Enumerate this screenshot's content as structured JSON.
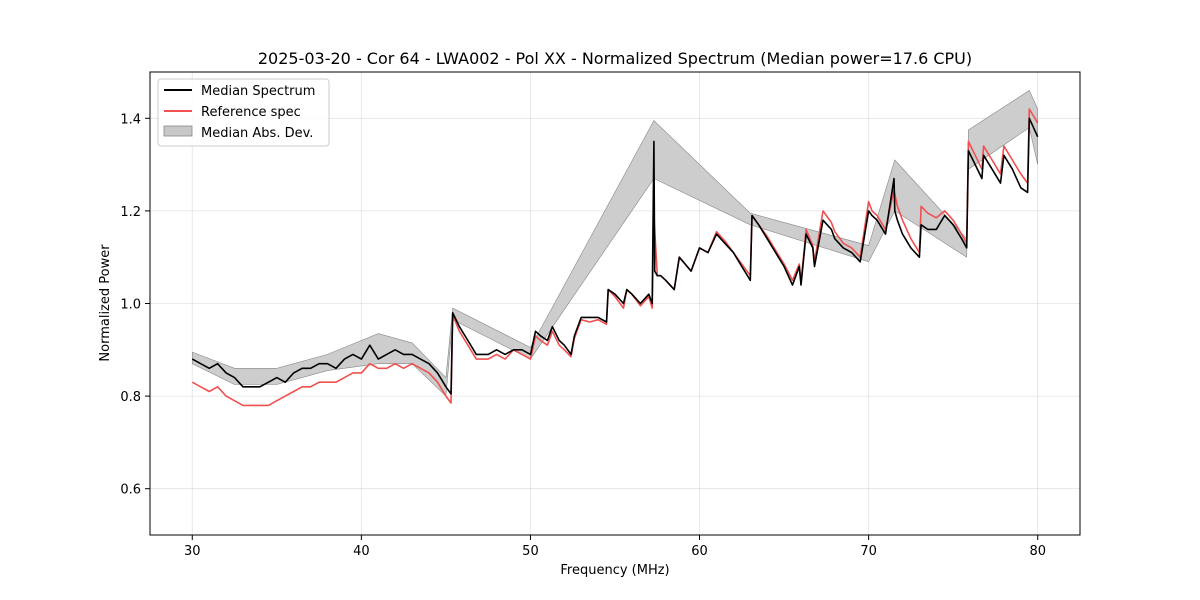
{
  "chart_data": {
    "type": "line",
    "title": "2025-03-20 - Cor 64 - LWA002 - Pol XX - Normalized Spectrum (Median power=17.6 CPU)",
    "xlabel": "Frequency (MHz)",
    "ylabel": "Normalized Power",
    "xlim": [
      27.5,
      82.5
    ],
    "ylim": [
      0.5,
      1.5
    ],
    "xticks": [
      30,
      40,
      50,
      60,
      70,
      80
    ],
    "yticks": [
      0.6,
      0.8,
      1.0,
      1.2,
      1.4
    ],
    "grid": true,
    "legend_position": "top-left",
    "legend": [
      "Median Spectrum",
      "Reference spec",
      "Median Abs. Dev."
    ],
    "colors": {
      "median": "#000000",
      "reference": "#f05050",
      "mad_fill": "#c8c8c8",
      "mad_edge": "#888888"
    },
    "series": [
      {
        "name": "Median Spectrum",
        "x": [
          30,
          30.5,
          31,
          31.5,
          32,
          32.5,
          33,
          33.5,
          34,
          34.5,
          35,
          35.5,
          36,
          36.5,
          37,
          37.5,
          38,
          38.5,
          39,
          39.5,
          40,
          40.5,
          41,
          41.5,
          42,
          42.5,
          43,
          43.5,
          44,
          44.5,
          45,
          45.3,
          45.4,
          45.8,
          46.3,
          46.8,
          47.5,
          48,
          48.5,
          49,
          49.5,
          50,
          50.3,
          50.6,
          51,
          51.3,
          51.7,
          52,
          52.4,
          52.6,
          53,
          53.5,
          54,
          54.5,
          54.6,
          55,
          55.5,
          55.7,
          56,
          56.5,
          57,
          57.2,
          57.3,
          57.35,
          57.5,
          57.7,
          58,
          58.5,
          58.8,
          59.5,
          60,
          60.5,
          61,
          61.5,
          62,
          62.5,
          63,
          63.1,
          63.5,
          64,
          64.5,
          65,
          65.5,
          65.9,
          66,
          66.3,
          66.7,
          66.8,
          67.3,
          67.8,
          68,
          68.5,
          69,
          69.5,
          70,
          70.2,
          70.5,
          71,
          71.5,
          71.55,
          71.7,
          72,
          72.5,
          73,
          73.1,
          73.5,
          74,
          74.5,
          75,
          75.5,
          75.8,
          75.9,
          76.3,
          76.7,
          76.8,
          77.3,
          77.8,
          78,
          78.5,
          79,
          79.4,
          79.5,
          80
        ],
        "y": [
          0.88,
          0.87,
          0.86,
          0.87,
          0.85,
          0.84,
          0.82,
          0.82,
          0.82,
          0.83,
          0.84,
          0.83,
          0.85,
          0.86,
          0.86,
          0.87,
          0.87,
          0.86,
          0.88,
          0.89,
          0.88,
          0.91,
          0.88,
          0.89,
          0.9,
          0.89,
          0.89,
          0.88,
          0.87,
          0.85,
          0.82,
          0.805,
          0.98,
          0.95,
          0.92,
          0.89,
          0.89,
          0.9,
          0.89,
          0.9,
          0.9,
          0.89,
          0.94,
          0.93,
          0.92,
          0.95,
          0.92,
          0.91,
          0.89,
          0.93,
          0.97,
          0.97,
          0.97,
          0.96,
          1.03,
          1.02,
          1.0,
          1.03,
          1.02,
          1.0,
          1.02,
          1.0,
          1.35,
          1.07,
          1.06,
          1.06,
          1.05,
          1.03,
          1.1,
          1.07,
          1.12,
          1.11,
          1.15,
          1.13,
          1.11,
          1.08,
          1.05,
          1.19,
          1.17,
          1.14,
          1.11,
          1.08,
          1.04,
          1.08,
          1.04,
          1.15,
          1.12,
          1.08,
          1.18,
          1.16,
          1.14,
          1.12,
          1.11,
          1.09,
          1.2,
          1.19,
          1.18,
          1.15,
          1.27,
          1.2,
          1.18,
          1.15,
          1.12,
          1.1,
          1.17,
          1.16,
          1.16,
          1.19,
          1.17,
          1.14,
          1.12,
          1.33,
          1.3,
          1.27,
          1.32,
          1.29,
          1.26,
          1.32,
          1.29,
          1.25,
          1.24,
          1.4,
          1.36
        ]
      },
      {
        "name": "Reference spec",
        "x": [
          30,
          30.5,
          31,
          31.5,
          32,
          32.5,
          33,
          33.5,
          34,
          34.5,
          35,
          35.5,
          36,
          36.5,
          37,
          37.5,
          38,
          38.5,
          39,
          39.5,
          40,
          40.5,
          41,
          41.5,
          42,
          42.5,
          43,
          43.5,
          44,
          44.5,
          45,
          45.3,
          45.4,
          45.8,
          46.3,
          46.8,
          47.5,
          48,
          48.5,
          49,
          49.5,
          50,
          50.3,
          50.6,
          51,
          51.3,
          51.7,
          52,
          52.4,
          52.6,
          53,
          53.5,
          54,
          54.5,
          54.6,
          55,
          55.5,
          55.7,
          56,
          56.5,
          57,
          57.2,
          57.3,
          57.5,
          57.7,
          58,
          58.5,
          58.8,
          59.5,
          60,
          60.5,
          61,
          61.5,
          62,
          62.5,
          63,
          63.1,
          63.5,
          64,
          64.5,
          65,
          65.5,
          65.9,
          66,
          66.3,
          66.7,
          66.8,
          67.3,
          67.8,
          68,
          68.5,
          69,
          69.5,
          70,
          70.2,
          70.5,
          71,
          71.5,
          71.7,
          72,
          72.5,
          73,
          73.1,
          73.5,
          74,
          74.5,
          75,
          75.5,
          75.8,
          75.9,
          76.3,
          76.7,
          76.8,
          77.3,
          77.8,
          78,
          78.5,
          79,
          79.4,
          79.5,
          80
        ],
        "y": [
          0.83,
          0.82,
          0.81,
          0.82,
          0.8,
          0.79,
          0.78,
          0.78,
          0.78,
          0.78,
          0.79,
          0.8,
          0.81,
          0.82,
          0.82,
          0.83,
          0.83,
          0.83,
          0.84,
          0.85,
          0.85,
          0.87,
          0.86,
          0.86,
          0.87,
          0.86,
          0.87,
          0.86,
          0.85,
          0.83,
          0.8,
          0.785,
          0.975,
          0.94,
          0.91,
          0.88,
          0.88,
          0.89,
          0.88,
          0.9,
          0.89,
          0.88,
          0.93,
          0.92,
          0.91,
          0.94,
          0.91,
          0.9,
          0.885,
          0.925,
          0.965,
          0.96,
          0.965,
          0.955,
          1.03,
          1.015,
          0.99,
          1.03,
          1.02,
          0.995,
          1.015,
          0.99,
          1.19,
          1.06,
          1.06,
          1.05,
          1.03,
          1.1,
          1.07,
          1.12,
          1.11,
          1.155,
          1.135,
          1.11,
          1.085,
          1.06,
          1.19,
          1.17,
          1.145,
          1.115,
          1.085,
          1.05,
          1.085,
          1.045,
          1.16,
          1.125,
          1.09,
          1.2,
          1.175,
          1.155,
          1.13,
          1.12,
          1.1,
          1.22,
          1.2,
          1.19,
          1.16,
          1.245,
          1.21,
          1.18,
          1.14,
          1.11,
          1.21,
          1.195,
          1.185,
          1.2,
          1.18,
          1.15,
          1.13,
          1.35,
          1.32,
          1.29,
          1.34,
          1.31,
          1.28,
          1.34,
          1.31,
          1.28,
          1.26,
          1.42,
          1.39
        ]
      },
      {
        "name": "Median Abs. Dev.",
        "type": "band",
        "x": [
          30,
          32.5,
          35,
          38,
          41,
          43,
          45,
          45.4,
          50,
          57.3,
          63,
          70,
          71.55,
          75.8,
          75.9,
          79.5,
          80
        ],
        "lower": [
          0.87,
          0.825,
          0.825,
          0.855,
          0.87,
          0.87,
          0.8,
          0.965,
          0.88,
          1.27,
          1.17,
          1.09,
          1.2,
          1.1,
          1.29,
          1.38,
          1.3
        ],
        "upper": [
          0.895,
          0.86,
          0.86,
          0.89,
          0.935,
          0.915,
          0.84,
          0.99,
          0.905,
          1.395,
          1.195,
          1.125,
          1.31,
          1.14,
          1.375,
          1.46,
          1.42
        ]
      }
    ]
  }
}
